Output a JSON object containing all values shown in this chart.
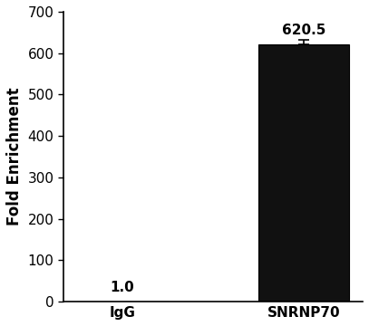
{
  "categories": [
    "IgG",
    "SNRNP70"
  ],
  "values": [
    1.0,
    620.5
  ],
  "error_low": 0.0,
  "error_high": 12.0,
  "bar_colors": [
    "#111111",
    "#111111"
  ],
  "bar_width": 0.5,
  "ylabel": "Fold Enrichment",
  "ylim": [
    0,
    700
  ],
  "yticks": [
    0,
    100,
    200,
    300,
    400,
    500,
    600,
    700
  ],
  "value_labels": [
    "1.0",
    "620.5"
  ],
  "value_label_fontsize": 11,
  "axis_label_fontsize": 12,
  "tick_label_fontsize": 11,
  "background_color": "#ffffff",
  "bar_edge_color": "#000000",
  "error_cap_size": 4,
  "error_color": "#000000"
}
